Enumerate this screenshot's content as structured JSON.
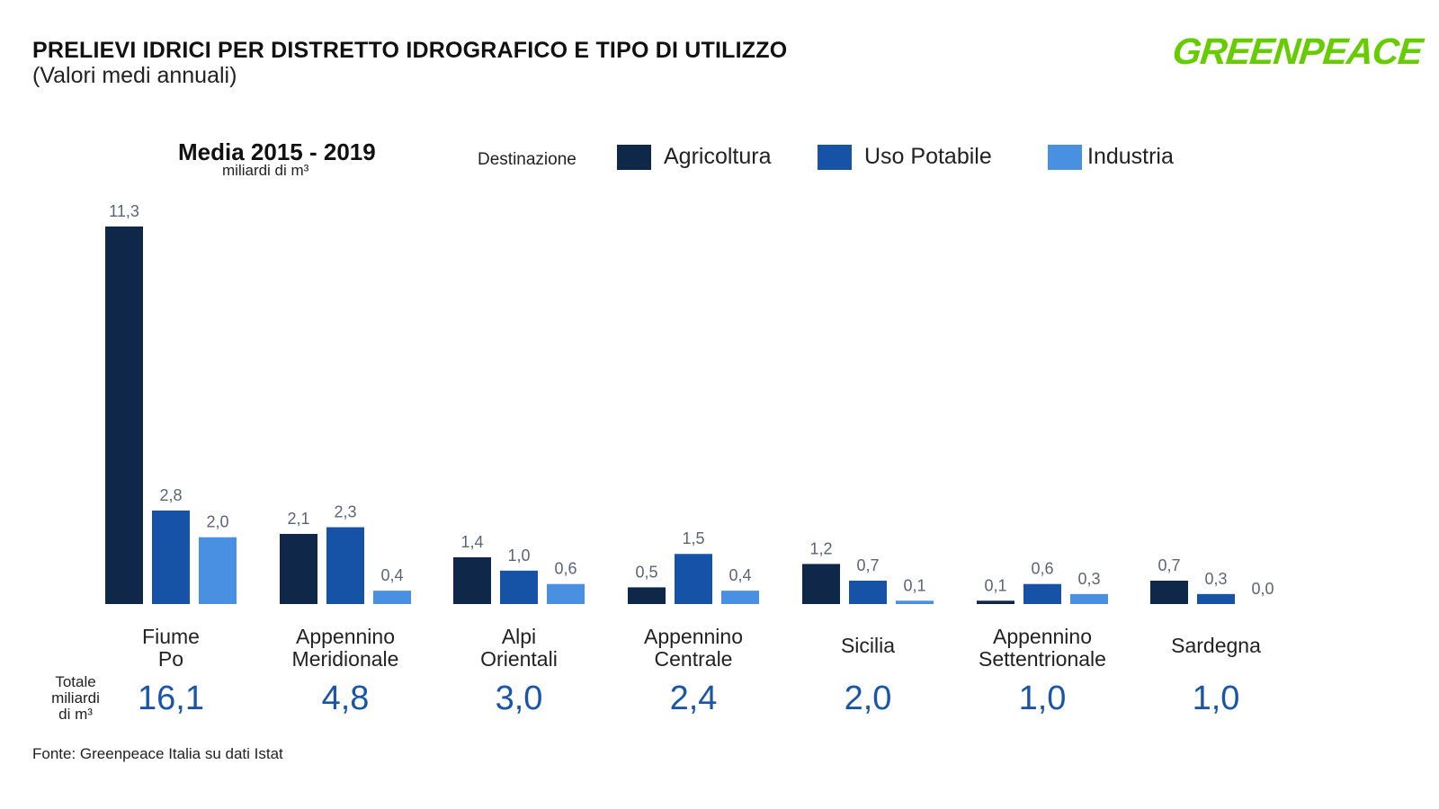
{
  "header": {
    "title": "PRELIEVI IDRICI PER DISTRETTO IDROGRAFICO E TIPO DI UTILIZZO",
    "subtitle": "(Valori medi annuali)",
    "logo": "GREENPEACE",
    "period": "Media 2015 - 2019",
    "unit": "miliardi di m³"
  },
  "legend": {
    "title": "Destinazione",
    "items": [
      {
        "label": "Agricoltura",
        "color": "#0f2748"
      },
      {
        "label": "Uso Potabile",
        "color": "#1653a6"
      },
      {
        "label": "Industria",
        "color": "#4a90e2"
      }
    ]
  },
  "totals": {
    "label_lines": [
      "Totale",
      "miliardi",
      "di m³"
    ],
    "values": [
      "16,1",
      "4,8",
      "3,0",
      "2,4",
      "2,0",
      "1,0",
      "1,0"
    ]
  },
  "footer": {
    "source": "Fonte: Greenpeace Italia su dati Istat"
  },
  "chart_data": {
    "type": "bar",
    "categories": [
      [
        "Fiume",
        "Po"
      ],
      [
        "Appennino",
        "Meridionale"
      ],
      [
        "Alpi",
        "Orientali"
      ],
      [
        "Appennino",
        "Centrale"
      ],
      [
        "Sicilia"
      ],
      [
        "Appennino",
        "Settentrionale"
      ],
      [
        "Sardegna"
      ]
    ],
    "series": [
      {
        "name": "Agricoltura",
        "color": "#0f2748",
        "values": [
          11.3,
          2.1,
          1.4,
          0.5,
          1.2,
          0.1,
          0.7
        ],
        "labels": [
          "11,3",
          "2,1",
          "1,4",
          "0,5",
          "1,2",
          "0,1",
          "0,7"
        ]
      },
      {
        "name": "Uso Potabile",
        "color": "#1653a6",
        "values": [
          2.8,
          2.3,
          1.0,
          1.5,
          0.7,
          0.6,
          0.3
        ],
        "labels": [
          "2,8",
          "2,3",
          "1,0",
          "1,5",
          "0,7",
          "0,6",
          "0,3"
        ]
      },
      {
        "name": "Industria",
        "color": "#4a90e2",
        "values": [
          2.0,
          0.4,
          0.6,
          0.4,
          0.1,
          0.3,
          0.0
        ],
        "labels": [
          "2,0",
          "0,4",
          "0,6",
          "0,4",
          "0,1",
          "0,3",
          "0,0"
        ]
      }
    ],
    "ylim": [
      0,
      11.3
    ],
    "grid": false,
    "legend_position": "top"
  }
}
